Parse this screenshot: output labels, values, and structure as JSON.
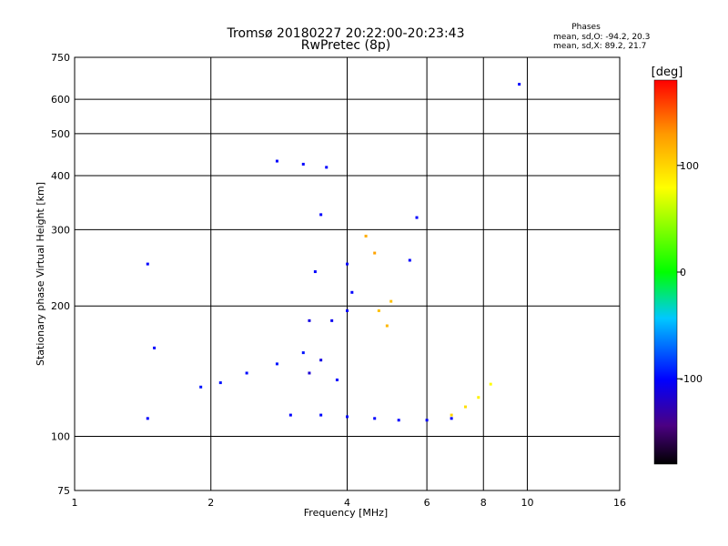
{
  "chart_data": {
    "type": "scatter",
    "title": "Tromsø 20180227 20:22:00-20:23:43",
    "subtitle": "RwPretec (8p)",
    "xlabel": "Frequency [MHz]",
    "ylabel": "Stationary phase Virtual Height [km]",
    "x_scale": "log",
    "y_scale": "log",
    "xlim": [
      1,
      16
    ],
    "ylim": [
      75,
      750
    ],
    "x_ticks": [
      1,
      2,
      4,
      6,
      8,
      10,
      16
    ],
    "x_ticklabels": [
      "1",
      "2",
      "4",
      "6",
      "8",
      "10",
      "16"
    ],
    "y_ticks": [
      75,
      100,
      200,
      300,
      400,
      500,
      600,
      750
    ],
    "y_ticklabels": [
      "75",
      "100",
      "200",
      "300",
      "400",
      "500",
      "600",
      "750"
    ],
    "grid": true,
    "stats": {
      "heading": "Phases",
      "line_o": "mean, sd,O: -94.2, 20.3",
      "line_x": "mean, sd,X:  89.2, 21.7"
    },
    "colorbar": {
      "label": "[deg]",
      "range": [
        -180,
        180
      ],
      "ticks": [
        100,
        0,
        -100
      ],
      "ticklabels": [
        "100",
        "0",
        "-100"
      ],
      "colormap": "rainbow"
    },
    "series": [
      {
        "values": [
          {
            "x": 1.9,
            "y": 130,
            "phase": -95
          },
          {
            "x": 2.1,
            "y": 133,
            "phase": -95
          },
          {
            "x": 2.4,
            "y": 140,
            "phase": -98
          },
          {
            "x": 2.8,
            "y": 147,
            "phase": -95
          },
          {
            "x": 3.2,
            "y": 156,
            "phase": -95
          },
          {
            "x": 3.3,
            "y": 140,
            "phase": -115
          },
          {
            "x": 3.5,
            "y": 150,
            "phase": -110
          },
          {
            "x": 3.8,
            "y": 135,
            "phase": -100
          },
          {
            "x": 3.0,
            "y": 112,
            "phase": -100
          },
          {
            "x": 3.5,
            "y": 112,
            "phase": -98
          },
          {
            "x": 4.0,
            "y": 111,
            "phase": -98
          },
          {
            "x": 4.6,
            "y": 110,
            "phase": -100
          },
          {
            "x": 5.2,
            "y": 109,
            "phase": -100
          },
          {
            "x": 6.0,
            "y": 109,
            "phase": -100
          },
          {
            "x": 6.8,
            "y": 110,
            "phase": -100
          },
          {
            "x": 3.3,
            "y": 185,
            "phase": -110
          },
          {
            "x": 3.7,
            "y": 185,
            "phase": -105
          },
          {
            "x": 4.0,
            "y": 195,
            "phase": -100
          },
          {
            "x": 4.1,
            "y": 215,
            "phase": -100
          },
          {
            "x": 3.4,
            "y": 240,
            "phase": -100
          },
          {
            "x": 4.0,
            "y": 250,
            "phase": -100
          },
          {
            "x": 3.5,
            "y": 325,
            "phase": -100
          },
          {
            "x": 2.8,
            "y": 432,
            "phase": -100
          },
          {
            "x": 3.2,
            "y": 425,
            "phase": -100
          },
          {
            "x": 3.6,
            "y": 418,
            "phase": -100
          },
          {
            "x": 4.7,
            "y": 195,
            "phase": 110
          },
          {
            "x": 4.9,
            "y": 180,
            "phase": 115
          },
          {
            "x": 5.0,
            "y": 205,
            "phase": 110
          },
          {
            "x": 4.4,
            "y": 290,
            "phase": 120
          },
          {
            "x": 4.6,
            "y": 265,
            "phase": 125
          },
          {
            "x": 6.8,
            "y": 112,
            "phase": 100
          },
          {
            "x": 7.3,
            "y": 117,
            "phase": 95
          },
          {
            "x": 7.8,
            "y": 123,
            "phase": 85
          },
          {
            "x": 8.3,
            "y": 132,
            "phase": 80
          },
          {
            "x": 1.45,
            "y": 250,
            "phase": -100
          },
          {
            "x": 1.5,
            "y": 160,
            "phase": -100
          },
          {
            "x": 1.45,
            "y": 110,
            "phase": -100
          },
          {
            "x": 5.5,
            "y": 255,
            "phase": -100
          },
          {
            "x": 5.7,
            "y": 320,
            "phase": -100
          },
          {
            "x": 9.6,
            "y": 650,
            "phase": -100
          }
        ]
      }
    ]
  }
}
